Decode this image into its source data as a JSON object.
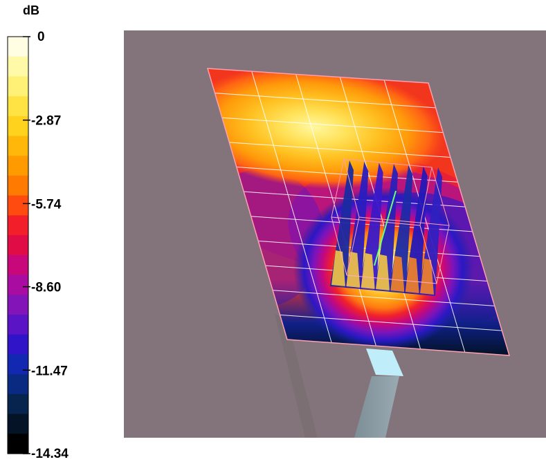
{
  "chart_data": {
    "type": "heatmap",
    "title": "",
    "colorbar": {
      "unit_label": "dB",
      "range": [
        -14.34,
        0
      ],
      "ticks": [
        {
          "label": "0",
          "value": 0
        },
        {
          "label": "-2.87",
          "value": -2.87
        },
        {
          "label": "-5.74",
          "value": -5.74
        },
        {
          "label": "-8.60",
          "value": -8.6
        },
        {
          "label": "-11.47",
          "value": -11.47
        },
        {
          "label": "-14.34",
          "value": -14.34
        }
      ],
      "color_levels": [
        "#fffde2",
        "#fff9a8",
        "#fff176",
        "#ffe345",
        "#ffd21e",
        "#ffb80a",
        "#ff9a00",
        "#ff7a00",
        "#ff4a10",
        "#f21e2a",
        "#e00c45",
        "#c8087a",
        "#a80ca0",
        "#8214b8",
        "#5a14c6",
        "#2f14c8",
        "#1228b0",
        "#0a2a82",
        "#07244f",
        "#041426",
        "#000000"
      ]
    },
    "scene_colors": {
      "background": "#82747a",
      "plate_border": "#ff9fb0",
      "grid_lines": "#ffffff",
      "stand": "#8a9ca4",
      "stand_top": "#bfeefa"
    }
  }
}
